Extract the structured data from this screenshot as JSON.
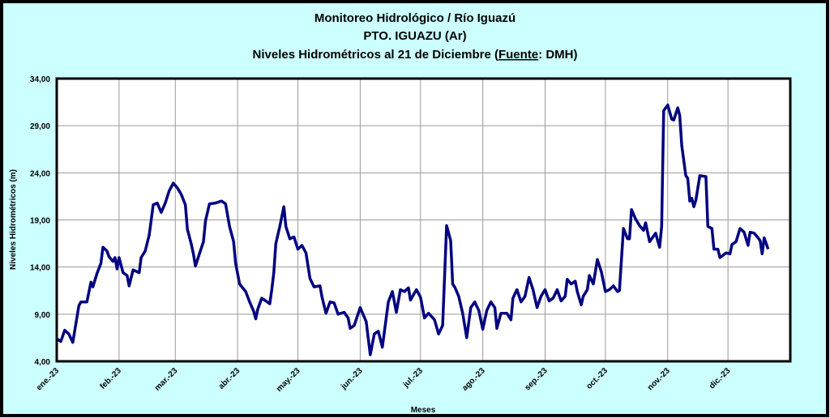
{
  "chart_data": {
    "type": "line",
    "title": [
      "Monitoreo Hidrológico / Río Iguazú",
      "PTO.  IGUAZU (Ar)"
    ],
    "subtitle_parts": [
      "Niveles Hidrométricos  al 21 de Diciembre (",
      "Fuente",
      ": DMH)"
    ],
    "xlabel": "Meses",
    "ylabel": "Niveles Hidrométricos  (m)",
    "ylim": [
      4,
      34
    ],
    "xlim": [
      "2023-01-01",
      "2024-01-01"
    ],
    "yticks": [
      "4,00",
      "9,00",
      "14,00",
      "19,00",
      "24,00",
      "29,00",
      "34,00"
    ],
    "xticks": [
      {
        "date": "2023-01-01",
        "label": "ene.-23"
      },
      {
        "date": "2023-02-01",
        "label": "feb.-23"
      },
      {
        "date": "2023-03-01",
        "label": "mar.-23"
      },
      {
        "date": "2023-04-01",
        "label": "abr.-23"
      },
      {
        "date": "2023-05-01",
        "label": "may.-23"
      },
      {
        "date": "2023-06-01",
        "label": "jun.-23"
      },
      {
        "date": "2023-07-01",
        "label": "jul.-23"
      },
      {
        "date": "2023-08-01",
        "label": "ago.-23"
      },
      {
        "date": "2023-09-01",
        "label": "sep.-23"
      },
      {
        "date": "2023-10-01",
        "label": "oct.-23"
      },
      {
        "date": "2023-11-01",
        "label": "nov.-23"
      },
      {
        "date": "2023-12-01",
        "label": "dic.-23"
      }
    ],
    "grid": true,
    "colors": {
      "line": "#000080",
      "background": "#ccffff",
      "plot": "#ffffff",
      "grid": "#9a9a9a"
    },
    "series": [
      {
        "x": [
          "2023-01-01",
          "2023-01-03",
          "2023-01-05",
          "2023-01-07",
          "2023-01-09",
          "2023-01-12",
          "2023-01-13",
          "2023-01-16",
          "2023-01-18",
          "2023-01-19",
          "2023-01-21",
          "2023-01-23",
          "2023-01-24",
          "2023-01-26",
          "2023-01-27",
          "2023-01-29",
          "2023-01-30",
          "2023-01-31",
          "2023-02-01",
          "2023-02-03",
          "2023-02-05",
          "2023-02-06",
          "2023-02-08",
          "2023-02-11",
          "2023-02-12",
          "2023-02-14",
          "2023-02-16",
          "2023-02-18",
          "2023-02-20",
          "2023-02-22",
          "2023-02-24",
          "2023-02-26",
          "2023-02-28",
          "2023-03-02",
          "2023-03-04",
          "2023-03-06",
          "2023-03-07",
          "2023-03-09",
          "2023-03-10",
          "2023-03-11",
          "2023-03-13",
          "2023-03-15",
          "2023-03-16",
          "2023-03-18",
          "2023-03-21",
          "2023-03-24",
          "2023-03-26",
          "2023-03-28",
          "2023-03-30",
          "2023-03-31",
          "2023-04-02",
          "2023-04-05",
          "2023-04-07",
          "2023-04-09",
          "2023-04-10",
          "2023-04-11",
          "2023-04-13",
          "2023-04-15",
          "2023-04-17",
          "2023-04-18",
          "2023-04-19",
          "2023-04-20",
          "2023-04-22",
          "2023-04-24",
          "2023-04-25",
          "2023-04-27",
          "2023-04-29",
          "2023-05-01",
          "2023-05-03",
          "2023-05-05",
          "2023-05-07",
          "2023-05-09",
          "2023-05-12",
          "2023-05-13",
          "2023-05-15",
          "2023-05-17",
          "2023-05-19",
          "2023-05-21",
          "2023-05-24",
          "2023-05-26",
          "2023-05-27",
          "2023-05-29",
          "2023-06-01",
          "2023-06-04",
          "2023-06-06",
          "2023-06-08",
          "2023-06-10",
          "2023-06-12",
          "2023-06-15",
          "2023-06-17",
          "2023-06-19",
          "2023-06-21",
          "2023-06-23",
          "2023-06-25",
          "2023-06-26",
          "2023-06-29",
          "2023-07-01",
          "2023-07-03",
          "2023-07-05",
          "2023-07-08",
          "2023-07-10",
          "2023-07-12",
          "2023-07-14",
          "2023-07-16",
          "2023-07-17",
          "2023-07-18",
          "2023-07-20",
          "2023-07-22",
          "2023-07-24",
          "2023-07-26",
          "2023-07-28",
          "2023-07-30",
          "2023-08-01",
          "2023-08-03",
          "2023-08-05",
          "2023-08-07",
          "2023-08-08",
          "2023-08-10",
          "2023-08-13",
          "2023-08-15",
          "2023-08-16",
          "2023-08-18",
          "2023-08-20",
          "2023-08-22",
          "2023-08-24",
          "2023-08-26",
          "2023-08-28",
          "2023-08-30",
          "2023-09-01",
          "2023-09-03",
          "2023-09-05",
          "2023-09-07",
          "2023-09-09",
          "2023-09-11",
          "2023-09-12",
          "2023-09-14",
          "2023-09-16",
          "2023-09-17",
          "2023-09-19",
          "2023-09-20",
          "2023-09-22",
          "2023-09-23",
          "2023-09-25",
          "2023-09-27",
          "2023-09-29",
          "2023-10-01",
          "2023-10-03",
          "2023-10-05",
          "2023-10-07",
          "2023-10-08",
          "2023-10-10",
          "2023-10-12",
          "2023-10-13",
          "2023-10-14",
          "2023-10-16",
          "2023-10-18",
          "2023-10-20",
          "2023-10-21",
          "2023-10-23",
          "2023-10-26",
          "2023-10-27",
          "2023-10-28",
          "2023-10-29",
          "2023-10-30",
          "2023-11-01",
          "2023-11-03",
          "2023-11-04",
          "2023-11-06",
          "2023-11-07",
          "2023-11-08",
          "2023-11-10",
          "2023-11-11",
          "2023-11-12",
          "2023-11-13",
          "2023-11-14",
          "2023-11-15",
          "2023-11-17",
          "2023-11-20",
          "2023-11-21",
          "2023-11-23",
          "2023-11-24",
          "2023-11-26",
          "2023-11-27",
          "2023-11-30",
          "2023-12-02",
          "2023-12-03",
          "2023-12-05",
          "2023-12-07",
          "2023-12-09",
          "2023-12-11",
          "2023-12-12",
          "2023-12-14",
          "2023-12-16",
          "2023-12-17",
          "2023-12-18",
          "2023-12-19",
          "2023-12-21"
        ],
        "y": [
          6.4,
          6.1,
          7.3,
          6.9,
          6.0,
          9.9,
          10.3,
          10.3,
          12.4,
          11.9,
          13.3,
          14.4,
          16.1,
          15.7,
          15.1,
          14.6,
          15.0,
          13.8,
          15.0,
          13.4,
          13.1,
          12.0,
          13.7,
          13.4,
          15.0,
          15.7,
          17.4,
          20.6,
          20.8,
          19.8,
          20.8,
          22.1,
          22.9,
          22.4,
          21.7,
          20.6,
          18.0,
          16.4,
          15.4,
          14.1,
          15.4,
          16.7,
          18.9,
          20.7,
          20.8,
          21.0,
          20.7,
          18.3,
          16.7,
          14.4,
          12.2,
          11.4,
          10.3,
          9.3,
          8.5,
          9.5,
          10.7,
          10.4,
          10.1,
          11.6,
          13.4,
          16.5,
          18.3,
          20.4,
          18.3,
          17.0,
          17.2,
          15.9,
          16.3,
          15.5,
          12.8,
          11.9,
          12.0,
          10.8,
          9.1,
          10.3,
          10.2,
          9.0,
          9.2,
          8.6,
          7.5,
          7.8,
          9.7,
          8.2,
          4.7,
          6.9,
          7.2,
          5.5,
          10.3,
          11.4,
          9.2,
          11.6,
          11.4,
          11.8,
          10.5,
          11.6,
          10.8,
          8.6,
          9.1,
          8.4,
          6.9,
          7.8,
          18.4,
          16.8,
          12.2,
          11.9,
          10.9,
          9.1,
          6.5,
          9.7,
          10.3,
          9.4,
          7.4,
          9.4,
          10.3,
          9.7,
          7.5,
          9.1,
          9.1,
          8.4,
          10.7,
          11.6,
          10.3,
          10.9,
          12.9,
          11.6,
          9.7,
          10.9,
          11.6,
          10.4,
          10.7,
          11.6,
          10.4,
          10.9,
          12.7,
          12.2,
          12.5,
          11.4,
          10.0,
          10.9,
          11.6,
          13.1,
          12.2,
          14.8,
          13.5,
          11.4,
          11.6,
          12.0,
          11.4,
          11.5,
          18.1,
          17.0,
          17.0,
          20.1,
          19.1,
          18.4,
          17.9,
          18.7,
          16.7,
          17.6,
          16.8,
          16.1,
          18.3,
          30.6,
          31.2,
          29.7,
          29.6,
          30.9,
          30.1,
          26.9,
          23.7,
          23.4,
          21.0,
          21.3,
          20.4,
          21.1,
          23.7,
          23.6,
          18.3,
          18.1,
          15.9,
          15.9,
          15.0,
          15.5,
          15.4,
          16.4,
          16.7,
          18.1,
          17.7,
          16.3,
          17.7,
          17.6,
          17.1,
          16.8,
          15.4,
          17.1,
          15.9
        ]
      }
    ]
  }
}
